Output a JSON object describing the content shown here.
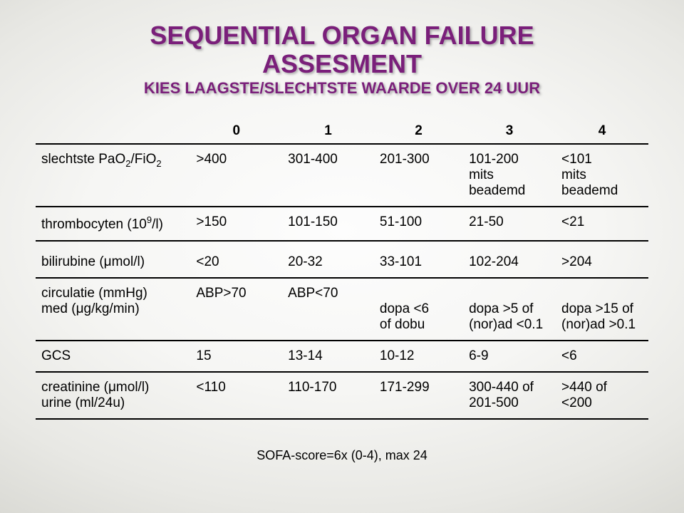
{
  "title_line1": "SEQUENTIAL ORGAN FAILURE",
  "title_line2": "ASSESMENT",
  "subtitle": "KIES LAAGSTE/SLECHTSTE WAARDE OVER 24 UUR",
  "header": {
    "c0": "",
    "c1": "0",
    "c2": "1",
    "c3": "2",
    "c4": "3",
    "c5": "4"
  },
  "rows": {
    "pao2": {
      "label_pre": "slechtste PaO",
      "label_sub1": "2",
      "label_mid": "/FiO",
      "label_sub2": "2",
      "c1": ">400",
      "c2": "301-400",
      "c3": "201-300",
      "c4a": "101-200",
      "c4b": "mits beademd",
      "c5a": "<101",
      "c5b": "mits beademd"
    },
    "thrombo": {
      "label_pre": "thrombocyten (10",
      "label_sup": "9",
      "label_post": "/l)",
      "c1": ">150",
      "c2": "101-150",
      "c3": "51-100",
      "c4": "21-50",
      "c5": "<21"
    },
    "bili": {
      "label": "bilirubine (μmol/l)",
      "c1": "<20",
      "c2": "20-32",
      "c3": "33-101",
      "c4": "102-204",
      "c5": ">204"
    },
    "circ": {
      "label1": "circulatie (mmHg)",
      "label2": "med (μg/kg/min)",
      "c1": "ABP>70",
      "c2": "ABP<70",
      "c3a": "dopa <6",
      "c3b": "of dobu",
      "c4a": "dopa >5 of",
      "c4b": "(nor)ad <0.1",
      "c5a": "dopa >15 of",
      "c5b": "(nor)ad >0.1"
    },
    "gcs": {
      "label": "GCS",
      "c1": "15",
      "c2": "13-14",
      "c3": "10-12",
      "c4": "6-9",
      "c5": "<6"
    },
    "creat": {
      "label1": "creatinine (μmol/l)",
      "label2": "urine (ml/24u)",
      "c1": "<110",
      "c2": "110-170",
      "c3": "171-299",
      "c4a": "300-440 of",
      "c4b": "201-500",
      "c5a": ">440 of",
      "c5b": "<200"
    }
  },
  "footer": "SOFA-score=6x (0-4), max 24",
  "colors": {
    "title": "#7a1f7a",
    "border": "#000000",
    "text": "#000000",
    "bg_center": "#fdfdfd",
    "bg_edge": "#d2d2cc"
  }
}
